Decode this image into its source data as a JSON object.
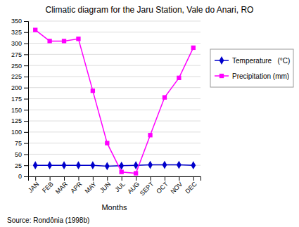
{
  "chart_data": {
    "type": "line",
    "title": "Climatic diagram for the Jaru Station, Vale do Anari, RO",
    "xlabel": "Months",
    "annotations": [
      "Source: Rondônia (1998b)"
    ],
    "categories": [
      "JAN",
      "FEB",
      "MAR",
      "APR",
      "MAY",
      "JUN",
      "JUL",
      "AUG",
      "SEPT",
      "OCT",
      "NOV",
      "DEC"
    ],
    "series": [
      {
        "name": "Temperature   (°C)",
        "color": "#0000cc",
        "marker": "diamond",
        "values": [
          25,
          25,
          25,
          25,
          25,
          23,
          24,
          25,
          26,
          26,
          26,
          25
        ]
      },
      {
        "name": "Precipitation (mm)",
        "color": "#ff00ff",
        "marker": "square",
        "values": [
          330,
          305,
          305,
          310,
          193,
          75,
          10,
          7,
          93,
          178,
          222,
          290
        ]
      }
    ],
    "ylim": [
      0,
      350
    ],
    "yticks": [
      0,
      25,
      50,
      75,
      100,
      125,
      150,
      175,
      200,
      225,
      250,
      275,
      300,
      325,
      350
    ],
    "grid": true,
    "legend": "right"
  }
}
